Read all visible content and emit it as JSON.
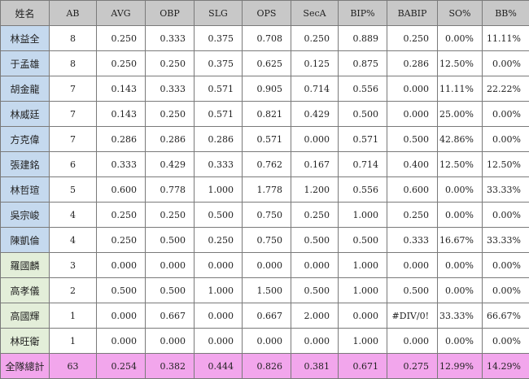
{
  "columns": [
    "姓名",
    "AB",
    "AVG",
    "OBP",
    "SLG",
    "OPS",
    "SecA",
    "BIP%",
    "BABIP",
    "SO%",
    "BB%"
  ],
  "rows": [
    {
      "group": "blue",
      "cells": [
        "林益全",
        "8",
        "0.250",
        "0.333",
        "0.375",
        "0.708",
        "0.250",
        "0.889",
        "0.250",
        "0.00%",
        "11.11%"
      ]
    },
    {
      "group": "blue",
      "cells": [
        "于孟雄",
        "8",
        "0.250",
        "0.250",
        "0.375",
        "0.625",
        "0.125",
        "0.875",
        "0.286",
        "12.50%",
        "0.00%"
      ]
    },
    {
      "group": "blue",
      "cells": [
        "胡金龍",
        "7",
        "0.143",
        "0.333",
        "0.571",
        "0.905",
        "0.714",
        "0.556",
        "0.000",
        "11.11%",
        "22.22%"
      ]
    },
    {
      "group": "blue",
      "cells": [
        "林威廷",
        "7",
        "0.143",
        "0.250",
        "0.571",
        "0.821",
        "0.429",
        "0.500",
        "0.000",
        "25.00%",
        "0.00%"
      ]
    },
    {
      "group": "blue",
      "cells": [
        "方克偉",
        "7",
        "0.286",
        "0.286",
        "0.286",
        "0.571",
        "0.000",
        "0.571",
        "0.500",
        "42.86%",
        "0.00%"
      ]
    },
    {
      "group": "blue",
      "cells": [
        "張建銘",
        "6",
        "0.333",
        "0.429",
        "0.333",
        "0.762",
        "0.167",
        "0.714",
        "0.400",
        "12.50%",
        "12.50%"
      ]
    },
    {
      "group": "blue",
      "cells": [
        "林哲瑄",
        "5",
        "0.600",
        "0.778",
        "1.000",
        "1.778",
        "1.200",
        "0.556",
        "0.600",
        "0.00%",
        "33.33%"
      ]
    },
    {
      "group": "blue",
      "cells": [
        "吳宗峻",
        "4",
        "0.250",
        "0.250",
        "0.500",
        "0.750",
        "0.250",
        "1.000",
        "0.250",
        "0.00%",
        "0.00%"
      ]
    },
    {
      "group": "blue",
      "cells": [
        "陳凱倫",
        "4",
        "0.250",
        "0.500",
        "0.250",
        "0.750",
        "0.500",
        "0.500",
        "0.333",
        "16.67%",
        "33.33%"
      ]
    },
    {
      "group": "green",
      "cells": [
        "羅國麟",
        "3",
        "0.000",
        "0.000",
        "0.000",
        "0.000",
        "0.000",
        "1.000",
        "0.000",
        "0.00%",
        "0.00%"
      ]
    },
    {
      "group": "green",
      "cells": [
        "高孝儀",
        "2",
        "0.500",
        "0.500",
        "1.000",
        "1.500",
        "0.500",
        "1.000",
        "0.500",
        "0.00%",
        "0.00%"
      ]
    },
    {
      "group": "green",
      "cells": [
        "高國輝",
        "1",
        "0.000",
        "0.667",
        "0.000",
        "0.667",
        "2.000",
        "0.000",
        "#DIV/0!",
        "33.33%",
        "66.67%"
      ]
    },
    {
      "group": "green",
      "cells": [
        "林旺衛",
        "1",
        "0.000",
        "0.000",
        "0.000",
        "0.000",
        "0.000",
        "1.000",
        "0.000",
        "0.00%",
        "0.00%"
      ]
    },
    {
      "group": "total",
      "cells": [
        "全隊總計",
        "63",
        "0.254",
        "0.382",
        "0.444",
        "0.826",
        "0.381",
        "0.671",
        "0.275",
        "12.99%",
        "14.29%"
      ]
    }
  ],
  "colors": {
    "header": "#c8c8c8",
    "blue": "#c5d9ee",
    "green": "#e3eed9",
    "total": "#f2a6ec"
  }
}
